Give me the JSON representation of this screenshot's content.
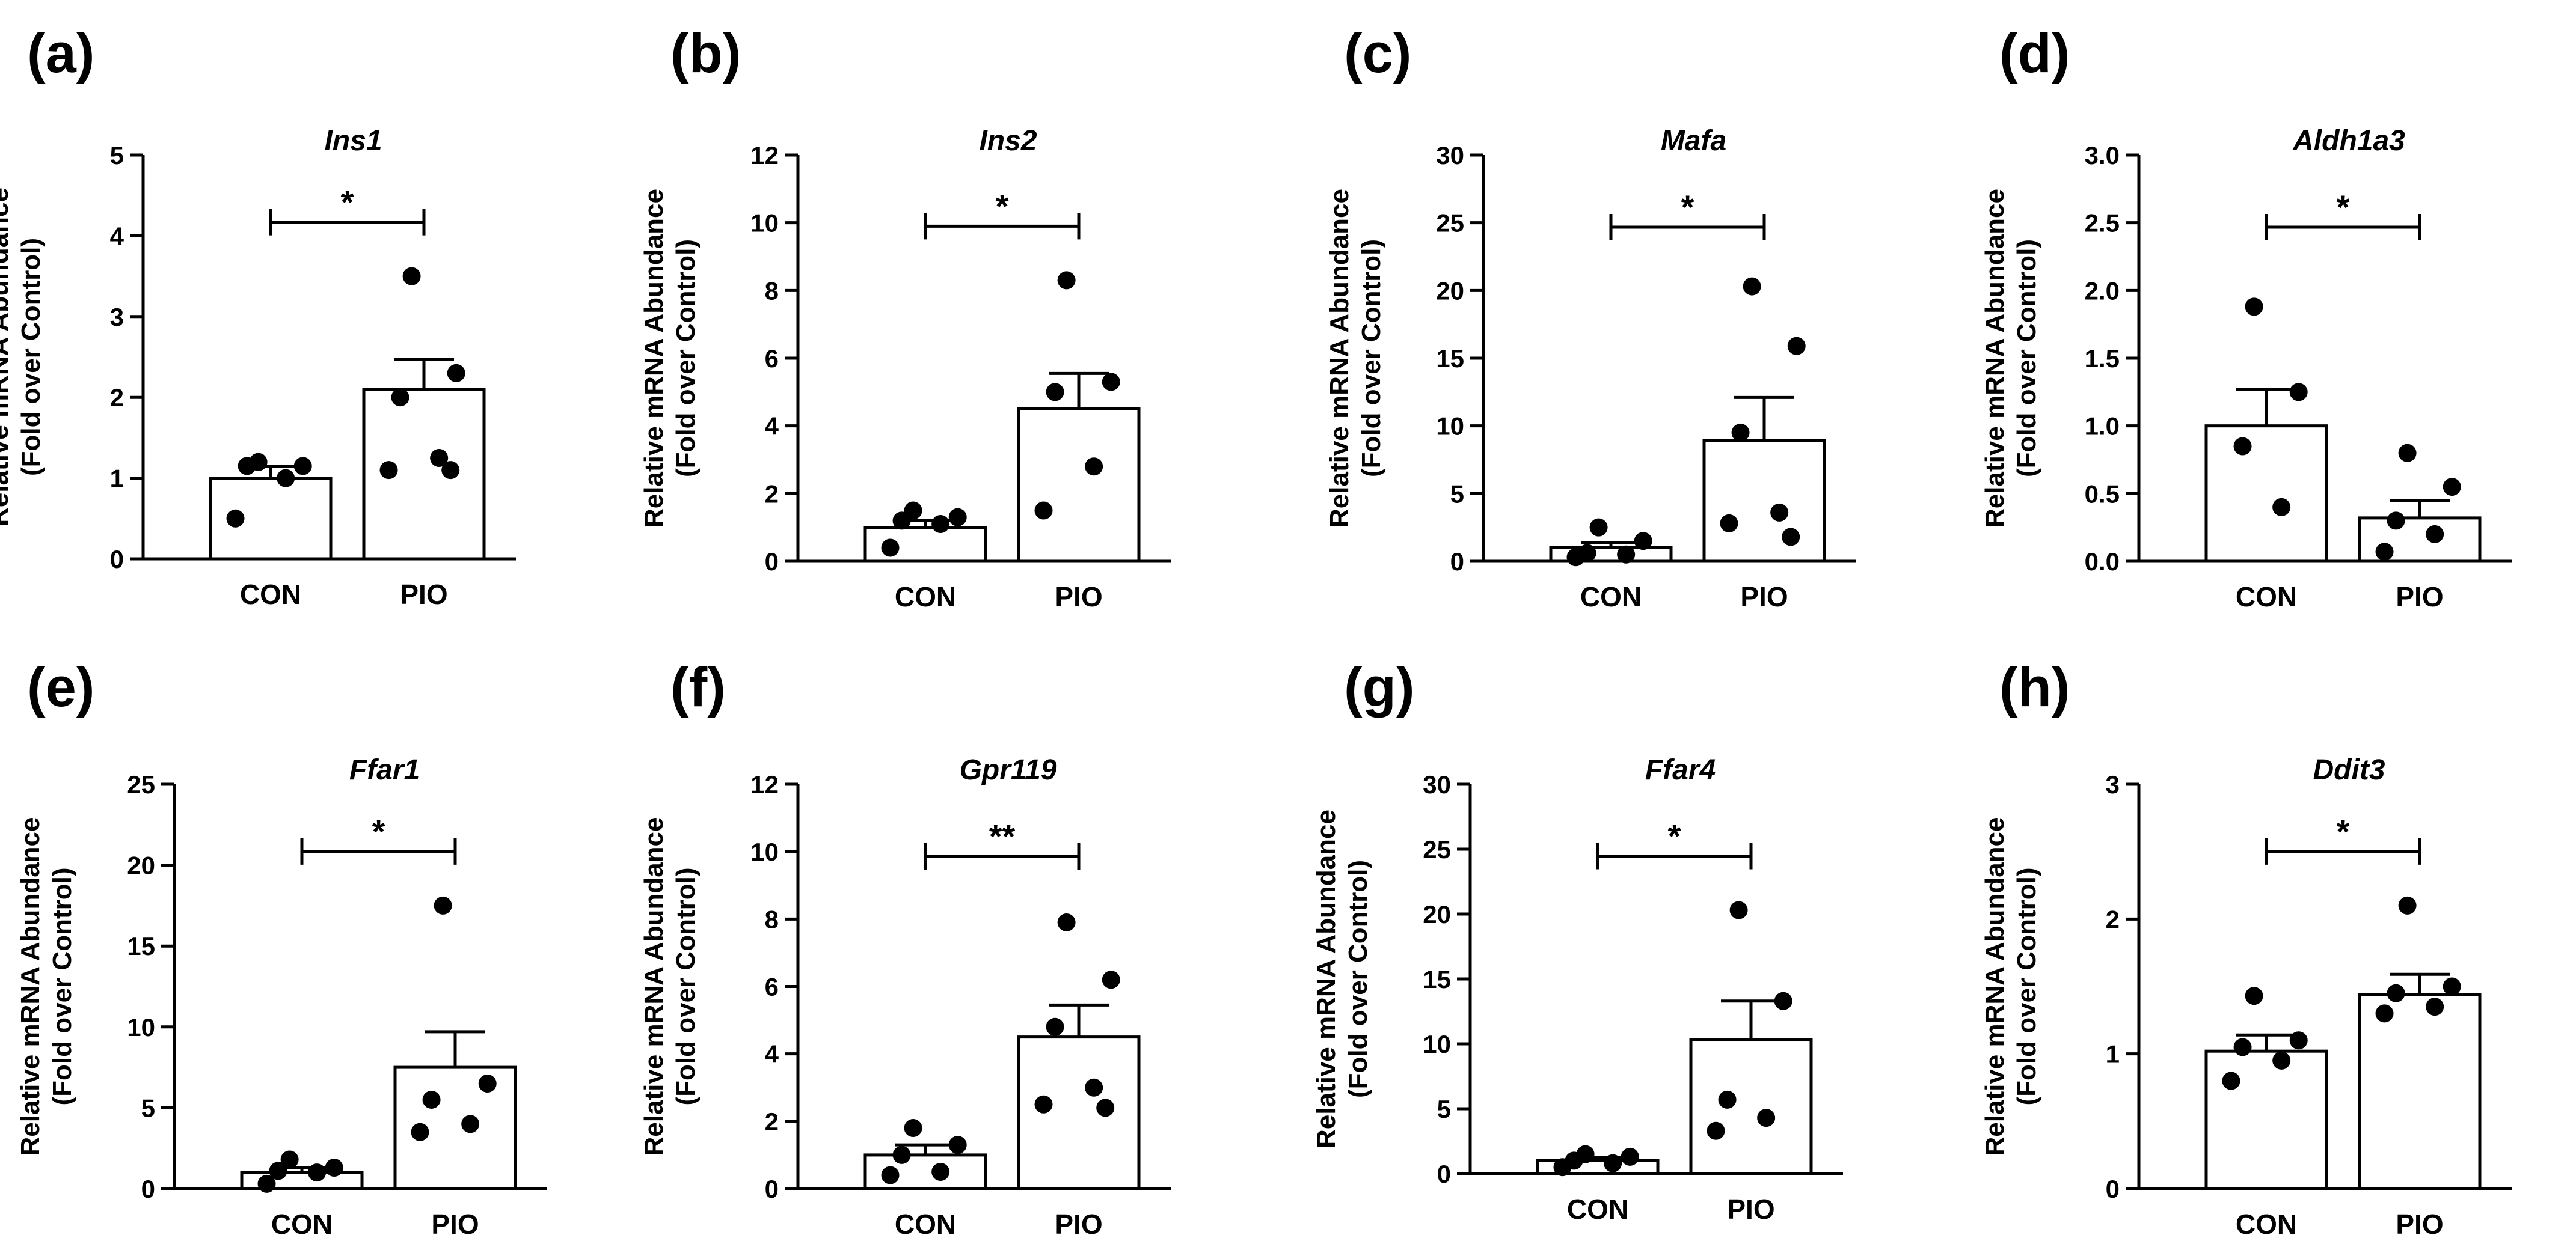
{
  "figure": {
    "background": "#ffffff",
    "ink": "#000000",
    "bar_fill": "#ffffff"
  },
  "chart_data": [
    {
      "type": "bar",
      "panel": "(a)",
      "title": "Ins1",
      "ylabel": [
        "Relative mRNA Abundance",
        "(Fold over Control)"
      ],
      "ylim": [
        0,
        5
      ],
      "yticks": [
        0,
        1,
        2,
        3,
        4,
        5
      ],
      "tick_decimals": 0,
      "categories": [
        "CON",
        "PIO"
      ],
      "values": [
        1.0,
        2.1
      ],
      "sem": [
        0.15,
        0.37
      ],
      "points": [
        [
          1.2,
          1.15,
          1.15,
          1.0,
          0.5
        ],
        [
          3.5,
          2.3,
          2.0,
          1.25,
          1.1,
          1.1
        ]
      ],
      "significance": "*"
    },
    {
      "type": "bar",
      "panel": "(b)",
      "title": "Ins2",
      "ylabel": [
        "Relative mRNA Abundance",
        "(Fold over Control)"
      ],
      "ylim": [
        0,
        12
      ],
      "yticks": [
        0,
        2,
        4,
        6,
        8,
        10,
        12
      ],
      "tick_decimals": 0,
      "categories": [
        "CON",
        "PIO"
      ],
      "values": [
        1.0,
        4.5
      ],
      "sem": [
        0.2,
        1.05
      ],
      "points": [
        [
          1.5,
          1.3,
          1.2,
          1.1,
          0.4
        ],
        [
          8.3,
          5.3,
          5.0,
          2.8,
          1.5
        ]
      ],
      "significance": "*"
    },
    {
      "type": "bar",
      "panel": "(c)",
      "title": "Mafa",
      "ylabel": [
        "Relative mRNA Abundance",
        "(Fold over Control)"
      ],
      "ylim": [
        0,
        30
      ],
      "yticks": [
        0,
        5,
        10,
        15,
        20,
        25,
        30
      ],
      "tick_decimals": 0,
      "categories": [
        "CON",
        "PIO"
      ],
      "values": [
        1.0,
        8.9
      ],
      "sem": [
        0.4,
        3.2
      ],
      "points": [
        [
          2.5,
          1.5,
          0.6,
          0.5,
          0.3
        ],
        [
          20.3,
          15.9,
          9.5,
          3.6,
          2.8,
          1.8
        ]
      ],
      "significance": "*"
    },
    {
      "type": "bar",
      "panel": "(d)",
      "title": "Aldh1a3",
      "ylabel": [
        "Relative mRNA Abundance",
        "(Fold over Control)"
      ],
      "ylim": [
        0,
        3
      ],
      "yticks": [
        0,
        0.5,
        1.0,
        1.5,
        2.0,
        2.5,
        3.0
      ],
      "tick_decimals": 1,
      "categories": [
        "CON",
        "PIO"
      ],
      "values": [
        1.0,
        0.32
      ],
      "sem": [
        0.27,
        0.13
      ],
      "points": [
        [
          1.88,
          1.25,
          0.85,
          0.4
        ],
        [
          0.8,
          0.55,
          0.3,
          0.2,
          0.07
        ]
      ],
      "significance": "*"
    },
    {
      "type": "bar",
      "panel": "(e)",
      "title": "Ffar1",
      "ylabel": [
        "Relative mRNA Abundance",
        "(Fold over Control)"
      ],
      "ylim": [
        0,
        25
      ],
      "yticks": [
        0,
        5,
        10,
        15,
        20,
        25
      ],
      "tick_decimals": 0,
      "categories": [
        "CON",
        "PIO"
      ],
      "values": [
        1.0,
        7.5
      ],
      "sem": [
        0.3,
        2.2
      ],
      "points": [
        [
          1.8,
          1.3,
          1.1,
          1.0,
          0.3
        ],
        [
          17.5,
          6.5,
          5.5,
          4.0,
          3.5
        ]
      ],
      "significance": "*"
    },
    {
      "type": "bar",
      "panel": "(f)",
      "title": "Gpr119",
      "ylabel": [
        "Relative mRNA Abundance",
        "(Fold over Control)"
      ],
      "ylim": [
        0,
        12
      ],
      "yticks": [
        0,
        2,
        4,
        6,
        8,
        10,
        12
      ],
      "tick_decimals": 0,
      "categories": [
        "CON",
        "PIO"
      ],
      "values": [
        1.0,
        4.5
      ],
      "sem": [
        0.3,
        0.95
      ],
      "points": [
        [
          1.8,
          1.3,
          1.0,
          0.5,
          0.4
        ],
        [
          7.9,
          6.2,
          4.8,
          3.0,
          2.5,
          2.4
        ]
      ],
      "significance": "**"
    },
    {
      "type": "bar",
      "panel": "(g)",
      "title": "Ffar4",
      "ylabel": [
        "Relative mRNA Abundance",
        "(Fold over Control)"
      ],
      "ylim": [
        0,
        30
      ],
      "yticks": [
        0,
        5,
        10,
        15,
        20,
        25,
        30
      ],
      "tick_decimals": 0,
      "categories": [
        "CON",
        "PIO"
      ],
      "values": [
        1.0,
        10.3
      ],
      "sem": [
        0.25,
        3.0
      ],
      "points": [
        [
          1.5,
          1.3,
          1.0,
          0.8,
          0.5
        ],
        [
          20.3,
          13.3,
          5.7,
          4.3,
          3.3
        ]
      ],
      "significance": "*"
    },
    {
      "type": "bar",
      "panel": "(h)",
      "title": "Ddit3",
      "ylabel": [
        "Relative mRNA Abundance",
        "(Fold over Control)"
      ],
      "ylim": [
        0,
        3
      ],
      "yticks": [
        0,
        1,
        2,
        3
      ],
      "tick_decimals": 0,
      "categories": [
        "CON",
        "PIO"
      ],
      "values": [
        1.02,
        1.44
      ],
      "sem": [
        0.12,
        0.15
      ],
      "points": [
        [
          1.43,
          1.1,
          1.05,
          0.95,
          0.8
        ],
        [
          2.1,
          1.5,
          1.45,
          1.35,
          1.3
        ]
      ],
      "significance": "*"
    }
  ]
}
